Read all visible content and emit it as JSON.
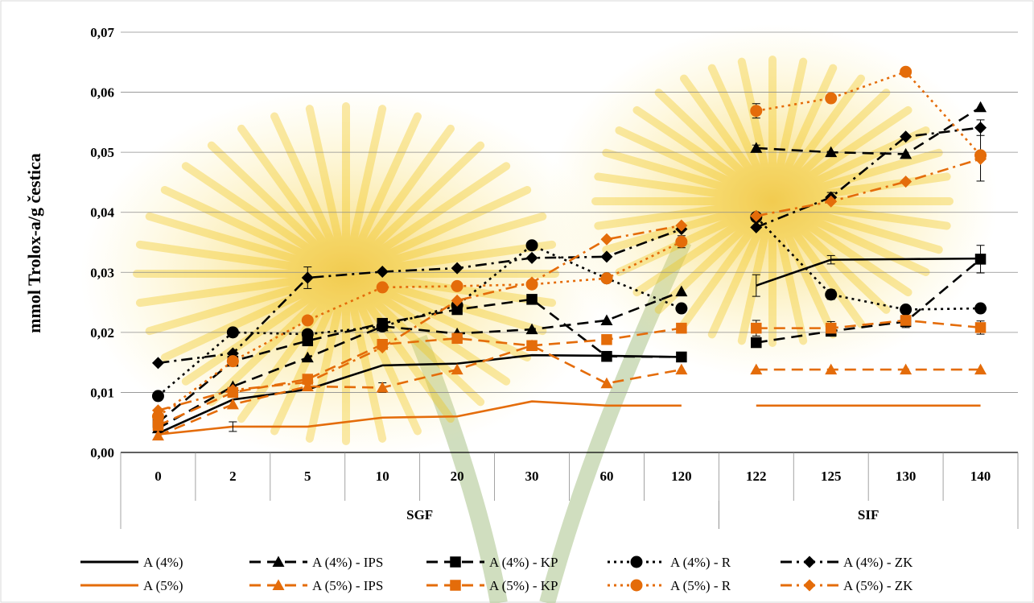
{
  "chart_data": {
    "type": "line",
    "title": "",
    "ylabel": "mmol Trolox-a/g čestica",
    "ylim": [
      0,
      0.07
    ],
    "ytick_labels": [
      "0,00",
      "0,01",
      "0,02",
      "0,03",
      "0,04",
      "0,05",
      "0,06",
      "0,07"
    ],
    "categories": [
      "0",
      "2",
      "5",
      "10",
      "20",
      "30",
      "60",
      "120",
      "122",
      "125",
      "130",
      "140"
    ],
    "groups": [
      {
        "label": "SGF",
        "from": 0,
        "to": 7
      },
      {
        "label": "SIF",
        "from": 8,
        "to": 11
      }
    ],
    "grid": true,
    "legend_position": "bottom",
    "colors": {
      "black": "#000000",
      "orange": "#e46c0a"
    },
    "series": [
      {
        "name": "A (4%)",
        "color": "#000000",
        "dash": "solid",
        "marker": "none",
        "values": [
          0.0032,
          0.0088,
          0.0105,
          0.0145,
          0.0148,
          0.0162,
          0.0161,
          0.0159,
          0.0278,
          0.0321,
          0.0322,
          0.0323
        ],
        "errors": [
          0,
          0,
          0,
          0,
          0,
          0,
          0,
          0,
          0.0018,
          0.0007,
          0,
          0
        ]
      },
      {
        "name": "A (4%) - IPS",
        "color": "#000000",
        "dash": "longdash",
        "marker": "triangle",
        "values": [
          0.004,
          0.011,
          0.0158,
          0.021,
          0.0198,
          0.0205,
          0.022,
          0.0268,
          0.0507,
          0.05,
          0.0497,
          0.0575
        ],
        "errors": [
          0,
          0,
          0,
          0,
          0,
          0,
          0,
          0,
          0.0005,
          0,
          0,
          0
        ]
      },
      {
        "name": "A (4%) - KP",
        "color": "#000000",
        "dash": "longdash",
        "marker": "square",
        "values": [
          0.005,
          0.0152,
          0.0186,
          0.0215,
          0.0238,
          0.0255,
          0.016,
          0.0159,
          0.0183,
          0.0202,
          0.0218,
          0.0322
        ],
        "errors": [
          0,
          0,
          0,
          0,
          0,
          0,
          0,
          0,
          0,
          0,
          0.001,
          0.0023
        ]
      },
      {
        "name": "A (4%) - R",
        "color": "#000000",
        "dash": "dot",
        "marker": "circle",
        "values": [
          0.0094,
          0.02,
          0.0197,
          0.021,
          0.0245,
          0.0345,
          0.029,
          0.024,
          0.0392,
          0.0263,
          0.0238,
          0.024
        ],
        "errors": [
          0,
          0,
          0,
          0,
          0,
          0,
          0,
          0,
          0,
          0.0008,
          0,
          0
        ]
      },
      {
        "name": "A (4%) - ZK",
        "color": "#000000",
        "dash": "dashdot",
        "marker": "diamond",
        "values": [
          0.0149,
          0.0165,
          0.0291,
          0.0301,
          0.0307,
          0.0324,
          0.0326,
          0.0372,
          0.0375,
          0.0425,
          0.0526,
          0.0541
        ],
        "errors": [
          0,
          0,
          0.0018,
          0,
          0,
          0,
          0,
          0,
          0,
          0.0008,
          0,
          0.0013
        ]
      },
      {
        "name": "A (5%)",
        "color": "#e46c0a",
        "dash": "solid",
        "marker": "none",
        "values": [
          0.003,
          0.0043,
          0.0043,
          0.0058,
          0.006,
          0.0085,
          0.0078,
          0.0078,
          0.0078,
          0.0078,
          0.0078,
          0.0078
        ],
        "errors": [
          0,
          0.0008,
          0,
          0,
          0,
          0,
          0,
          0,
          0,
          0,
          0,
          0
        ]
      },
      {
        "name": "A (5%) - IPS",
        "color": "#e46c0a",
        "dash": "longdash",
        "marker": "triangle",
        "values": [
          0.0028,
          0.008,
          0.011,
          0.0108,
          0.0138,
          0.0178,
          0.0115,
          0.0138,
          0.0138,
          0.0138,
          0.0138,
          0.0138
        ],
        "errors": [
          0,
          0,
          0,
          0.0008,
          0,
          0,
          0,
          0,
          0,
          0,
          0,
          0
        ]
      },
      {
        "name": "A (5%) - KP",
        "color": "#e46c0a",
        "dash": "longdash",
        "marker": "square",
        "values": [
          0.0045,
          0.01,
          0.0122,
          0.018,
          0.019,
          0.0178,
          0.0188,
          0.0207,
          0.0207,
          0.0207,
          0.022,
          0.0208
        ],
        "errors": [
          0,
          0,
          0,
          0,
          0,
          0,
          0,
          0.0008,
          0.0013,
          0.0011,
          0.0008,
          0.0011
        ]
      },
      {
        "name": "A (5%) - R",
        "color": "#e46c0a",
        "dash": "dot",
        "marker": "circle",
        "values": [
          0.006,
          0.0152,
          0.022,
          0.0275,
          0.0277,
          0.028,
          0.029,
          0.0351,
          0.0569,
          0.059,
          0.0634,
          0.0495
        ],
        "errors": [
          0,
          0,
          0,
          0,
          0,
          0,
          0,
          0.001,
          0.0012,
          0,
          0,
          0.0043
        ]
      },
      {
        "name": "A (5%) - ZK",
        "color": "#e46c0a",
        "dash": "dashdot",
        "marker": "diamond",
        "values": [
          0.007,
          0.0104,
          0.0117,
          0.0175,
          0.0253,
          0.0283,
          0.0355,
          0.0378,
          0.0394,
          0.0418,
          0.0451,
          0.0489
        ],
        "errors": [
          0,
          0,
          0,
          0,
          0,
          0,
          0,
          0,
          0,
          0,
          0,
          0
        ]
      }
    ]
  }
}
